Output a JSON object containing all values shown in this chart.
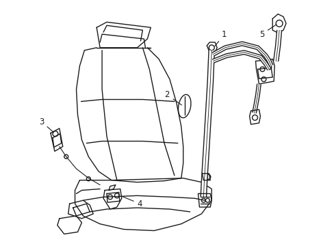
{
  "bg_color": "#ffffff",
  "line_color": "#1a1a1a",
  "line_width": 1.0,
  "figsize": [
    4.89,
    3.6
  ],
  "dpi": 100
}
